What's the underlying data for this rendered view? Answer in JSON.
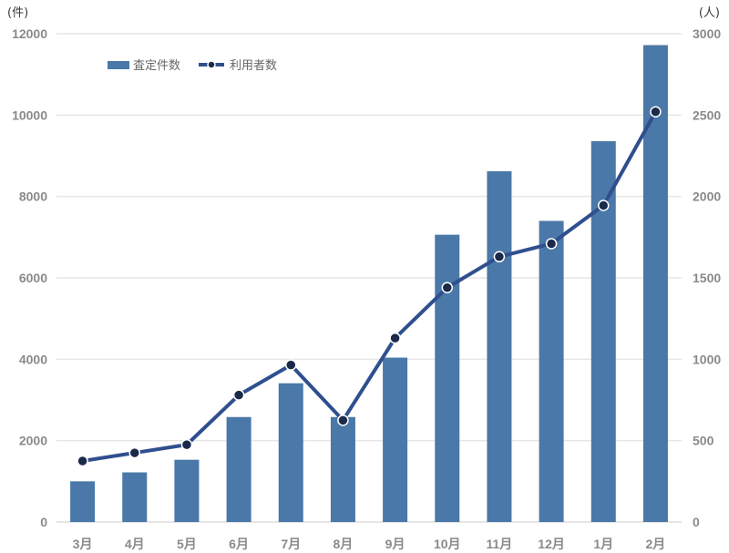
{
  "chart_data": {
    "type": "bar+line",
    "categories": [
      "3月",
      "4月",
      "5月",
      "6月",
      "7月",
      "8月",
      "9月",
      "10月",
      "11月",
      "12月",
      "1月",
      "2月"
    ],
    "series": [
      {
        "name": "査定件数",
        "type": "bar",
        "axis": "left",
        "color": "#4a78a8",
        "values": [
          1000,
          1220,
          1530,
          2580,
          3410,
          2580,
          4040,
          7060,
          8620,
          7400,
          9360,
          11720
        ]
      },
      {
        "name": "利用者数",
        "type": "line",
        "axis": "right",
        "color": "#2f4f8f",
        "marker_color": "#1b2a4a",
        "values": [
          375,
          425,
          475,
          780,
          965,
          625,
          1130,
          1440,
          1630,
          1710,
          1945,
          2520
        ]
      }
    ],
    "y_left": {
      "unit": "(件)",
      "ticks": [
        "0",
        "2000",
        "4000",
        "6000",
        "8000",
        "10000",
        "12000"
      ],
      "ylim": [
        0,
        12000
      ]
    },
    "y_right": {
      "unit": "(人)",
      "ticks": [
        "0",
        "500",
        "1000",
        "1500",
        "2000",
        "2500",
        "3000"
      ],
      "ylim": [
        0,
        3000
      ]
    },
    "grid": true,
    "legend_position": "top-left"
  }
}
